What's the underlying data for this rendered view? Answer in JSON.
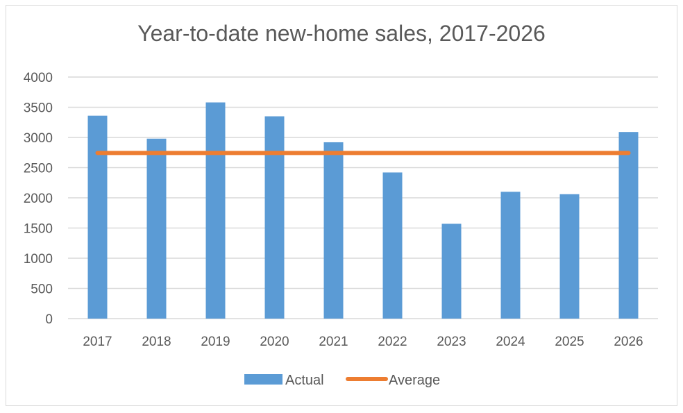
{
  "chart_data": {
    "type": "bar",
    "title": "Year-to-date new-home sales, 2017-2026",
    "categories": [
      "2017",
      "2018",
      "2019",
      "2020",
      "2021",
      "2022",
      "2023",
      "2024",
      "2025",
      "2026"
    ],
    "series": [
      {
        "name": "Actual",
        "type": "bar",
        "color": "#5b9bd5",
        "values": [
          3360,
          2980,
          3580,
          3350,
          2920,
          2420,
          1570,
          2100,
          2060,
          3090
        ]
      },
      {
        "name": "Average",
        "type": "line",
        "color": "#ed7d31",
        "values": [
          2743,
          2743,
          2743,
          2743,
          2743,
          2743,
          2743,
          2743,
          2743,
          2743
        ]
      }
    ],
    "ylim": [
      0,
      4000
    ],
    "yticks": [
      0,
      500,
      1000,
      1500,
      2000,
      2500,
      3000,
      3500,
      4000
    ],
    "grid": true,
    "legend": "bottom"
  }
}
